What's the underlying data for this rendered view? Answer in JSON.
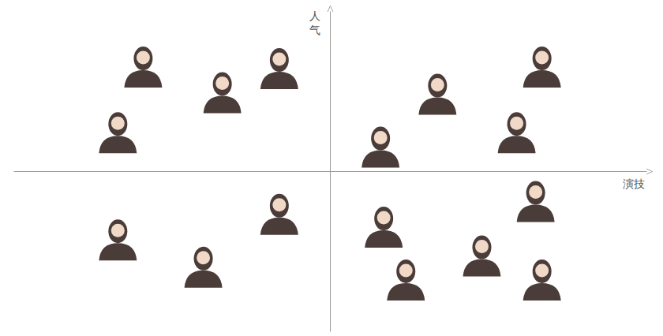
{
  "chart_data": {
    "type": "scatter",
    "x_label": "演技",
    "y_label": "人气",
    "x": [
      -5.9,
      -3.4,
      -1.6,
      -6.7,
      3.4,
      6.7,
      5.9,
      1.6,
      6.5,
      -1.6,
      -6.7,
      -4.0,
      1.7,
      4.8,
      2.4,
      6.7
    ],
    "values": [
      6.6,
      5.0,
      6.5,
      2.5,
      4.9,
      6.6,
      2.5,
      1.6,
      -1.8,
      -2.6,
      -4.2,
      -5.9,
      -3.4,
      -5.2,
      -6.7,
      -6.7
    ],
    "xlim": [
      -10,
      10
    ],
    "ylim": [
      -10,
      10
    ],
    "tick_labels": false,
    "grid": false,
    "marker": "portrait",
    "color": "#4a3c38"
  }
}
